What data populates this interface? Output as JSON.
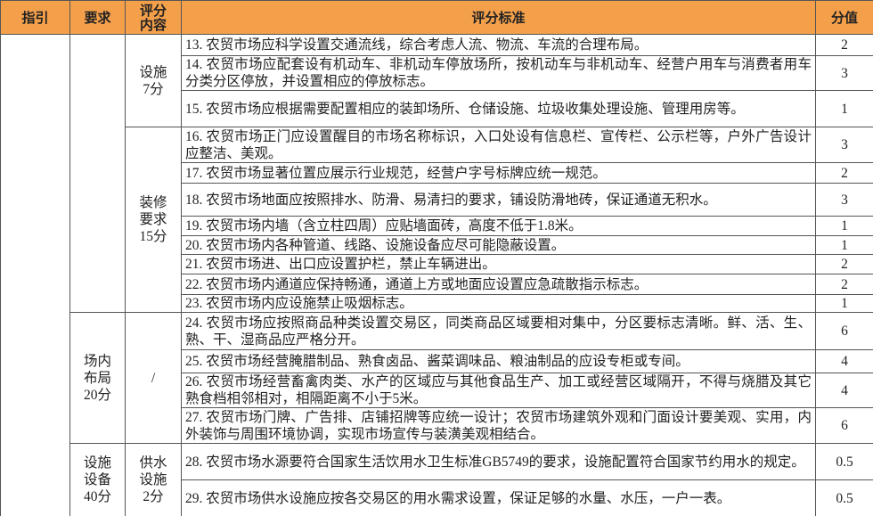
{
  "table": {
    "header": [
      "指引",
      "要求",
      "评分\n内容",
      "评分标准",
      "分值"
    ],
    "sections": [
      {
        "contents": [
          {
            "label": "设施\n7分",
            "items": [
              {
                "criterion": "13. 农贸市场应科学设置交通流线，综合考虑人流、物流、车流的合理布局。",
                "score": "2"
              },
              {
                "criterion": "14. 农贸市场应配套设有机动车、非机动车停放场所，按机动车与非机动车、经营户用车与消费者用车分类分区停放，并设置相应的停放标志。",
                "score": "3"
              },
              {
                "criterion": "15. 农贸市场应根据需要配置相应的装卸场所、仓储设施、垃圾收集处理设施、管理用房等。",
                "score": "1"
              }
            ]
          },
          {
            "label": "装修\n要求\n15分",
            "items": [
              {
                "criterion": "16. 农贸市场正门应设置醒目的市场名称标识，入口处设有信息栏、宣传栏、公示栏等，户外广告设计应整洁、美观。",
                "score": "3"
              },
              {
                "criterion": "17. 农贸市场显著位置应展示行业规范，经营户字号标牌应统一规范。",
                "score": "2"
              },
              {
                "criterion": "18. 农贸市场地面应按照排水、防滑、易清扫的要求，铺设防滑地砖，保证通道无积水。",
                "score": "3"
              },
              {
                "criterion": "19. 农贸市场内墙（含立柱四周）应贴墙面砖，高度不低于1.8米。",
                "score": "1"
              },
              {
                "criterion": "20. 农贸市场内各种管道、线路、设施设备应尽可能隐蔽设置。",
                "score": "1"
              },
              {
                "criterion": "21. 农贸市场进、出口应设置护栏，禁止车辆进出。",
                "score": "2"
              },
              {
                "criterion": "22. 农贸市场内通道应保持畅通，通道上方或地面应设置应急疏散指示标志。",
                "score": "2"
              },
              {
                "criterion": "23. 农贸市场内应设施禁止吸烟标志。",
                "score": "1"
              }
            ]
          }
        ]
      },
      {
        "label": "场内\n布局\n20分",
        "contents": [
          {
            "label": "/",
            "items": [
              {
                "criterion": "24. 农贸市场应按照商品种类设置交易区，同类商品区域要相对集中，分区要标志清晰。鲜、活、生、熟、干、湿商品应严格分开。",
                "score": "6"
              },
              {
                "criterion": "25. 农贸市场经营腌腊制品、熟食卤品、酱菜调味品、粮油制品的应设专柜或专间。",
                "score": "4"
              },
              {
                "criterion": "26. 农贸市场经营畜禽肉类、水产的区域应与其他食品生产、加工或经营区域隔开，不得与烧腊及其它熟食档相邻相对，相隔距离不小于5米。",
                "score": "4"
              },
              {
                "criterion": "27. 农贸市场门牌、广告排、店铺招牌等应统一设计；农贸市场建筑外观和门面设计要美观、实用，内外装饰与周围环境协调，实现市场宣传与装潢美观相结合。",
                "score": "6"
              }
            ]
          }
        ]
      },
      {
        "label": "设施\n设备\n40分",
        "contents": [
          {
            "label": "供水\n设施\n2分",
            "items": [
              {
                "criterion": "28. 农贸市场水源要符合国家生活饮用水卫生标准GB5749的要求，设施配置符合国家节约用水的规定。",
                "score": "0.5"
              },
              {
                "criterion": "29. 农贸市场供水设施应按各交易区的用水需求设置，保证足够的水量、水压，一户一表。",
                "score": "0.5"
              }
            ]
          }
        ]
      }
    ]
  }
}
